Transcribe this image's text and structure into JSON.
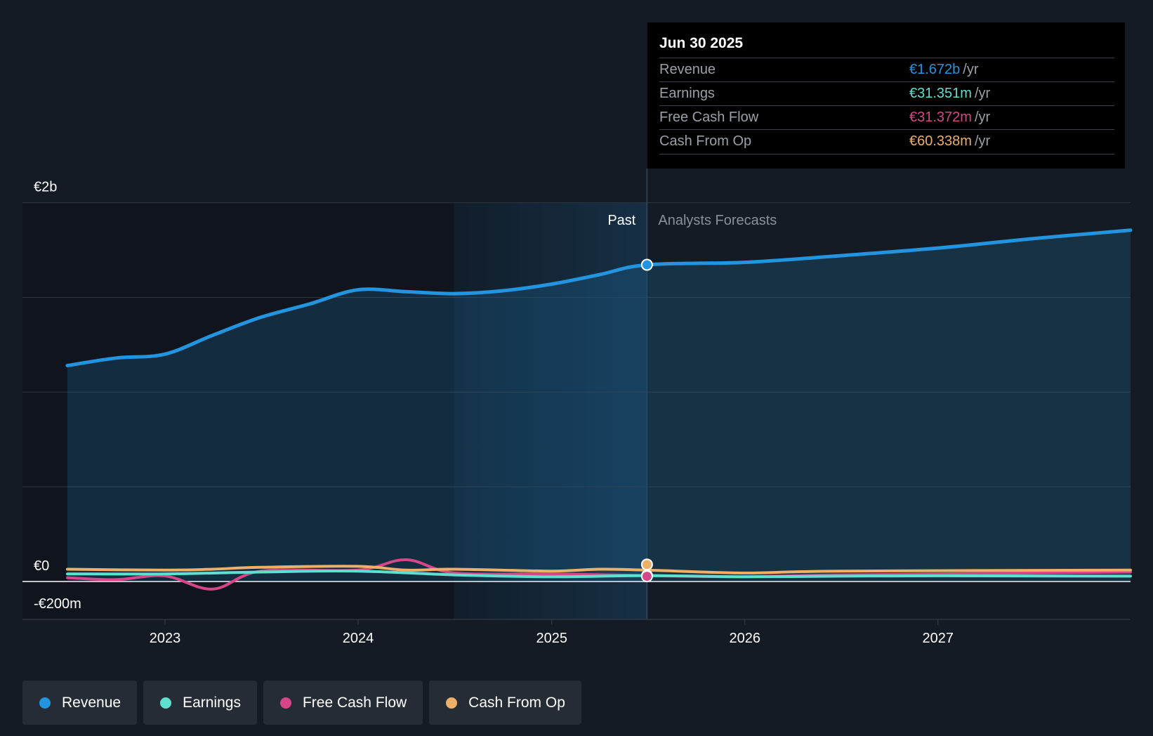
{
  "colors": {
    "background": "#151b24",
    "revenue": "#2394df",
    "earnings": "#5ee0cf",
    "free_cash_flow": "#d6478a",
    "cash_from_op": "#eeb066"
  },
  "tooltip": {
    "date": "Jun 30 2025",
    "rows": [
      {
        "label": "Revenue",
        "value": "€1.672b",
        "unit": "/yr"
      },
      {
        "label": "Earnings",
        "value": "€31.351m",
        "unit": "/yr"
      },
      {
        "label": "Free Cash Flow",
        "value": "€31.372m",
        "unit": "/yr"
      },
      {
        "label": "Cash From Op",
        "value": "€60.338m",
        "unit": "/yr"
      }
    ]
  },
  "legend": [
    {
      "label": "Revenue",
      "color": "#2394df"
    },
    {
      "label": "Earnings",
      "color": "#5ee0cf"
    },
    {
      "label": "Free Cash Flow",
      "color": "#d6478a"
    },
    {
      "label": "Cash From Op",
      "color": "#eeb066"
    }
  ],
  "chart_data": {
    "type": "area",
    "title": "",
    "xlabel": "",
    "ylabel": "",
    "x_axis": {
      "type": "date",
      "range": [
        "2022-06-30",
        "2027-12-31"
      ],
      "ticks": [
        "2023",
        "2024",
        "2025",
        "2026",
        "2027"
      ]
    },
    "y_axis": {
      "range": [
        -200,
        2000
      ],
      "unit": "€m",
      "tick_labels": [
        {
          "value": 2000,
          "label": "€2b"
        },
        {
          "value": 0,
          "label": "€0"
        },
        {
          "value": -200,
          "label": "-€200m"
        }
      ],
      "grid_values": [
        2000,
        1500,
        1000,
        500,
        0
      ]
    },
    "grid": true,
    "legend_position": "bottom-left",
    "divider": {
      "date": "2025-06-30",
      "past_label": "Past",
      "forecast_label": "Analysts Forecasts"
    },
    "series": [
      {
        "name": "Revenue",
        "color": "#2394df",
        "points": [
          [
            "2022-07-01",
            1140
          ],
          [
            "2022-10-01",
            1180
          ],
          [
            "2022-12-31",
            1200
          ],
          [
            "2023-04-01",
            1300
          ],
          [
            "2023-07-01",
            1395
          ],
          [
            "2023-10-01",
            1465
          ],
          [
            "2023-12-31",
            1540
          ],
          [
            "2024-04-01",
            1530
          ],
          [
            "2024-07-01",
            1520
          ],
          [
            "2024-10-01",
            1535
          ],
          [
            "2024-12-31",
            1570
          ],
          [
            "2025-04-01",
            1620
          ],
          [
            "2025-06-30",
            1672
          ],
          [
            "2025-12-31",
            1685
          ],
          [
            "2026-06-30",
            1720
          ],
          [
            "2026-12-31",
            1760
          ],
          [
            "2027-06-30",
            1810
          ],
          [
            "2027-12-31",
            1855
          ]
        ]
      },
      {
        "name": "Earnings",
        "color": "#5ee0cf",
        "points": [
          [
            "2022-07-01",
            40
          ],
          [
            "2022-12-31",
            40
          ],
          [
            "2023-07-01",
            50
          ],
          [
            "2023-12-31",
            55
          ],
          [
            "2024-07-01",
            35
          ],
          [
            "2024-12-31",
            25
          ],
          [
            "2025-06-30",
            31
          ],
          [
            "2025-12-31",
            25
          ],
          [
            "2026-06-30",
            28
          ],
          [
            "2026-12-31",
            30
          ],
          [
            "2027-12-31",
            28
          ]
        ]
      },
      {
        "name": "Free Cash Flow",
        "color": "#d6478a",
        "points": [
          [
            "2022-07-01",
            20
          ],
          [
            "2022-10-01",
            10
          ],
          [
            "2022-12-31",
            30
          ],
          [
            "2023-04-01",
            -40
          ],
          [
            "2023-07-01",
            55
          ],
          [
            "2023-12-31",
            60
          ],
          [
            "2024-04-01",
            115
          ],
          [
            "2024-07-01",
            45
          ],
          [
            "2024-12-31",
            40
          ],
          [
            "2025-06-30",
            31
          ],
          [
            "2025-12-31",
            25
          ],
          [
            "2026-06-30",
            35
          ],
          [
            "2027-12-31",
            50
          ]
        ]
      },
      {
        "name": "Cash From Op",
        "color": "#eeb066",
        "points": [
          [
            "2022-07-01",
            65
          ],
          [
            "2022-12-31",
            60
          ],
          [
            "2023-04-01",
            65
          ],
          [
            "2023-07-01",
            75
          ],
          [
            "2023-12-31",
            80
          ],
          [
            "2024-04-01",
            60
          ],
          [
            "2024-07-01",
            65
          ],
          [
            "2024-12-31",
            55
          ],
          [
            "2025-04-01",
            65
          ],
          [
            "2025-06-30",
            60
          ],
          [
            "2025-12-31",
            45
          ],
          [
            "2026-06-30",
            55
          ],
          [
            "2027-12-31",
            60
          ]
        ]
      }
    ]
  }
}
